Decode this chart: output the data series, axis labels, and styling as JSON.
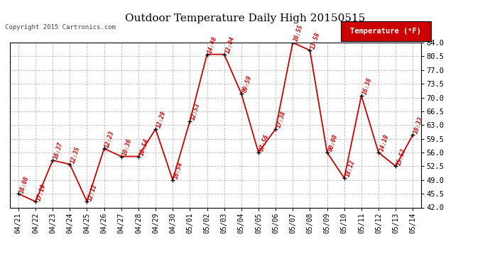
{
  "title": "Outdoor Temperature Daily High 20150515",
  "copyright": "Copyright 2015 Cartronics.com",
  "legend_label": "Temperature (°F)",
  "dates": [
    "04/21",
    "04/22",
    "04/23",
    "04/24",
    "04/25",
    "04/26",
    "04/27",
    "04/28",
    "04/29",
    "04/30",
    "05/01",
    "05/02",
    "05/03",
    "05/04",
    "05/05",
    "05/06",
    "05/07",
    "05/08",
    "05/09",
    "05/10",
    "05/11",
    "05/12",
    "05/13",
    "05/14"
  ],
  "temps": [
    45.5,
    43.5,
    54.0,
    53.0,
    43.5,
    57.0,
    55.0,
    55.0,
    62.0,
    49.0,
    64.0,
    81.0,
    81.0,
    71.0,
    56.0,
    62.0,
    84.0,
    82.0,
    56.0,
    49.5,
    70.5,
    56.0,
    52.5,
    60.5
  ],
  "times": [
    "16:08",
    "17:19",
    "16:37",
    "12:35",
    "12:12",
    "12:23",
    "10:36",
    "10:54",
    "12:29",
    "16:54",
    "12:53",
    "14:48",
    "12:04",
    "09:59",
    "07:56",
    "17:38",
    "16:55",
    "13:58",
    "00:00",
    "18:12",
    "16:38",
    "14:10",
    "15:52",
    "10:33"
  ],
  "ylim": [
    42.0,
    84.0
  ],
  "yticks": [
    42.0,
    45.5,
    49.0,
    52.5,
    56.0,
    59.5,
    63.0,
    66.5,
    70.0,
    73.5,
    77.0,
    80.5,
    84.0
  ],
  "line_color": "#cc0000",
  "marker_color": "#000000",
  "bg_color": "#ffffff",
  "grid_color": "#bbbbbb",
  "title_color": "#000000",
  "legend_bg": "#cc0000",
  "legend_fg": "#ffffff",
  "annotation_color": "#cc0000"
}
